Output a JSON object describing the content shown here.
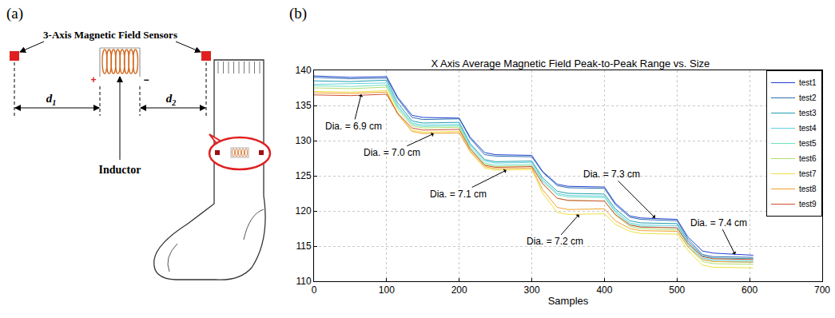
{
  "panel_labels": [
    "(a)",
    "(b)"
  ],
  "diagram": {
    "sensors_label": "3-Axis Magnetic Field Sensors",
    "inductor_label": "Inductor",
    "distances": [
      {
        "main": "d",
        "sub": "1"
      },
      {
        "main": "d",
        "sub": "2"
      }
    ],
    "terminals": [
      "+",
      "−"
    ]
  },
  "chart_data": {
    "type": "line",
    "title": "X Axis Average Magnetic Field Peak-to-Peak Range vs. Size",
    "x_label": "Samples",
    "x": [
      0,
      50,
      100,
      115,
      135,
      150,
      200,
      215,
      235,
      250,
      300,
      315,
      335,
      350,
      400,
      415,
      435,
      450,
      500,
      515,
      535,
      550,
      605
    ],
    "series": [
      {
        "name": "test1",
        "color": "#2040d0",
        "values": [
          139.2,
          139.0,
          139.1,
          136.2,
          133.6,
          133.3,
          133.2,
          130.5,
          128.3,
          128.0,
          127.9,
          125.6,
          123.8,
          123.5,
          123.4,
          121.1,
          119.3,
          119.0,
          118.8,
          116.3,
          114.3,
          114.0,
          113.7
        ]
      },
      {
        "name": "test2",
        "color": "#2f6fb0",
        "values": [
          139.0,
          138.8,
          138.9,
          136.0,
          133.3,
          133.0,
          133.1,
          130.3,
          128.0,
          127.8,
          127.7,
          125.5,
          123.6,
          123.3,
          123.2,
          120.9,
          119.1,
          118.8,
          118.6,
          116.0,
          113.8,
          113.5,
          113.4
        ]
      },
      {
        "name": "test3",
        "color": "#20a0b0",
        "values": [
          138.5,
          138.4,
          138.6,
          135.4,
          132.8,
          132.5,
          132.6,
          129.6,
          127.3,
          127.0,
          127.1,
          124.7,
          122.8,
          122.5,
          122.4,
          120.3,
          118.6,
          118.3,
          118.2,
          115.7,
          113.6,
          113.3,
          113.2
        ]
      },
      {
        "name": "test4",
        "color": "#60d0e0",
        "values": [
          138.0,
          138.1,
          138.2,
          135.0,
          132.5,
          132.2,
          132.3,
          129.4,
          127.1,
          126.8,
          126.9,
          124.4,
          122.5,
          122.2,
          122.1,
          120.0,
          118.3,
          118.0,
          117.9,
          115.4,
          113.3,
          113.0,
          112.9
        ]
      },
      {
        "name": "test5",
        "color": "#70e0c0",
        "values": [
          137.8,
          137.7,
          137.9,
          134.8,
          132.3,
          132.0,
          132.1,
          129.1,
          126.8,
          126.5,
          126.6,
          124.2,
          122.3,
          122.0,
          121.9,
          119.8,
          118.1,
          117.8,
          117.6,
          115.2,
          113.1,
          112.8,
          112.7
        ]
      },
      {
        "name": "test6",
        "color": "#b0e070",
        "values": [
          137.5,
          137.4,
          137.6,
          134.5,
          132.1,
          131.8,
          131.9,
          128.9,
          126.6,
          126.3,
          126.4,
          123.8,
          121.8,
          121.5,
          121.4,
          119.4,
          117.8,
          117.5,
          117.3,
          114.9,
          112.8,
          112.5,
          112.4
        ]
      },
      {
        "name": "test7",
        "color": "#f0e040",
        "values": [
          137.0,
          136.9,
          137.1,
          134.0,
          131.5,
          131.2,
          131.3,
          128.4,
          126.1,
          125.8,
          125.9,
          122.5,
          119.8,
          119.5,
          119.6,
          118.1,
          117.1,
          116.8,
          116.7,
          114.4,
          112.3,
          112.0,
          111.9
        ]
      },
      {
        "name": "test8",
        "color": "#f0a030",
        "values": [
          136.8,
          136.7,
          136.9,
          133.8,
          131.3,
          131.0,
          131.1,
          128.5,
          126.3,
          126.0,
          126.1,
          123.0,
          120.5,
          120.2,
          120.3,
          118.6,
          117.5,
          117.2,
          117.1,
          114.9,
          113.1,
          112.8,
          112.7
        ]
      },
      {
        "name": "test9",
        "color": "#d05030",
        "values": [
          136.5,
          136.4,
          136.6,
          133.9,
          131.8,
          131.5,
          131.6,
          128.8,
          126.5,
          126.2,
          126.3,
          123.9,
          121.8,
          121.5,
          121.4,
          119.5,
          118.0,
          117.7,
          117.6,
          115.4,
          113.5,
          113.2,
          113.1
        ]
      }
    ],
    "xlim": [
      0,
      700
    ],
    "xticks": [
      0,
      100,
      200,
      300,
      400,
      500,
      600,
      700
    ],
    "ylim": [
      110,
      140
    ],
    "yticks": [
      110,
      115,
      120,
      125,
      130,
      135,
      140
    ],
    "grid": true,
    "legend": "upper right",
    "annotations": [
      {
        "text": "Dia. = 6.9 cm",
        "x": 65,
        "y": 136.6
      },
      {
        "text": "Dia. = 7.0 cm",
        "x": 165,
        "y": 131
      },
      {
        "text": "Dia. = 7.1 cm",
        "x": 265,
        "y": 125.8
      },
      {
        "text": "Dia. = 7.2 cm",
        "x": 365,
        "y": 119.5
      },
      {
        "text": "Dia. = 7.3 cm",
        "x": 470,
        "y": 119
      },
      {
        "text": "Dia. = 7.4 cm",
        "x": 580,
        "y": 113.8
      }
    ]
  }
}
